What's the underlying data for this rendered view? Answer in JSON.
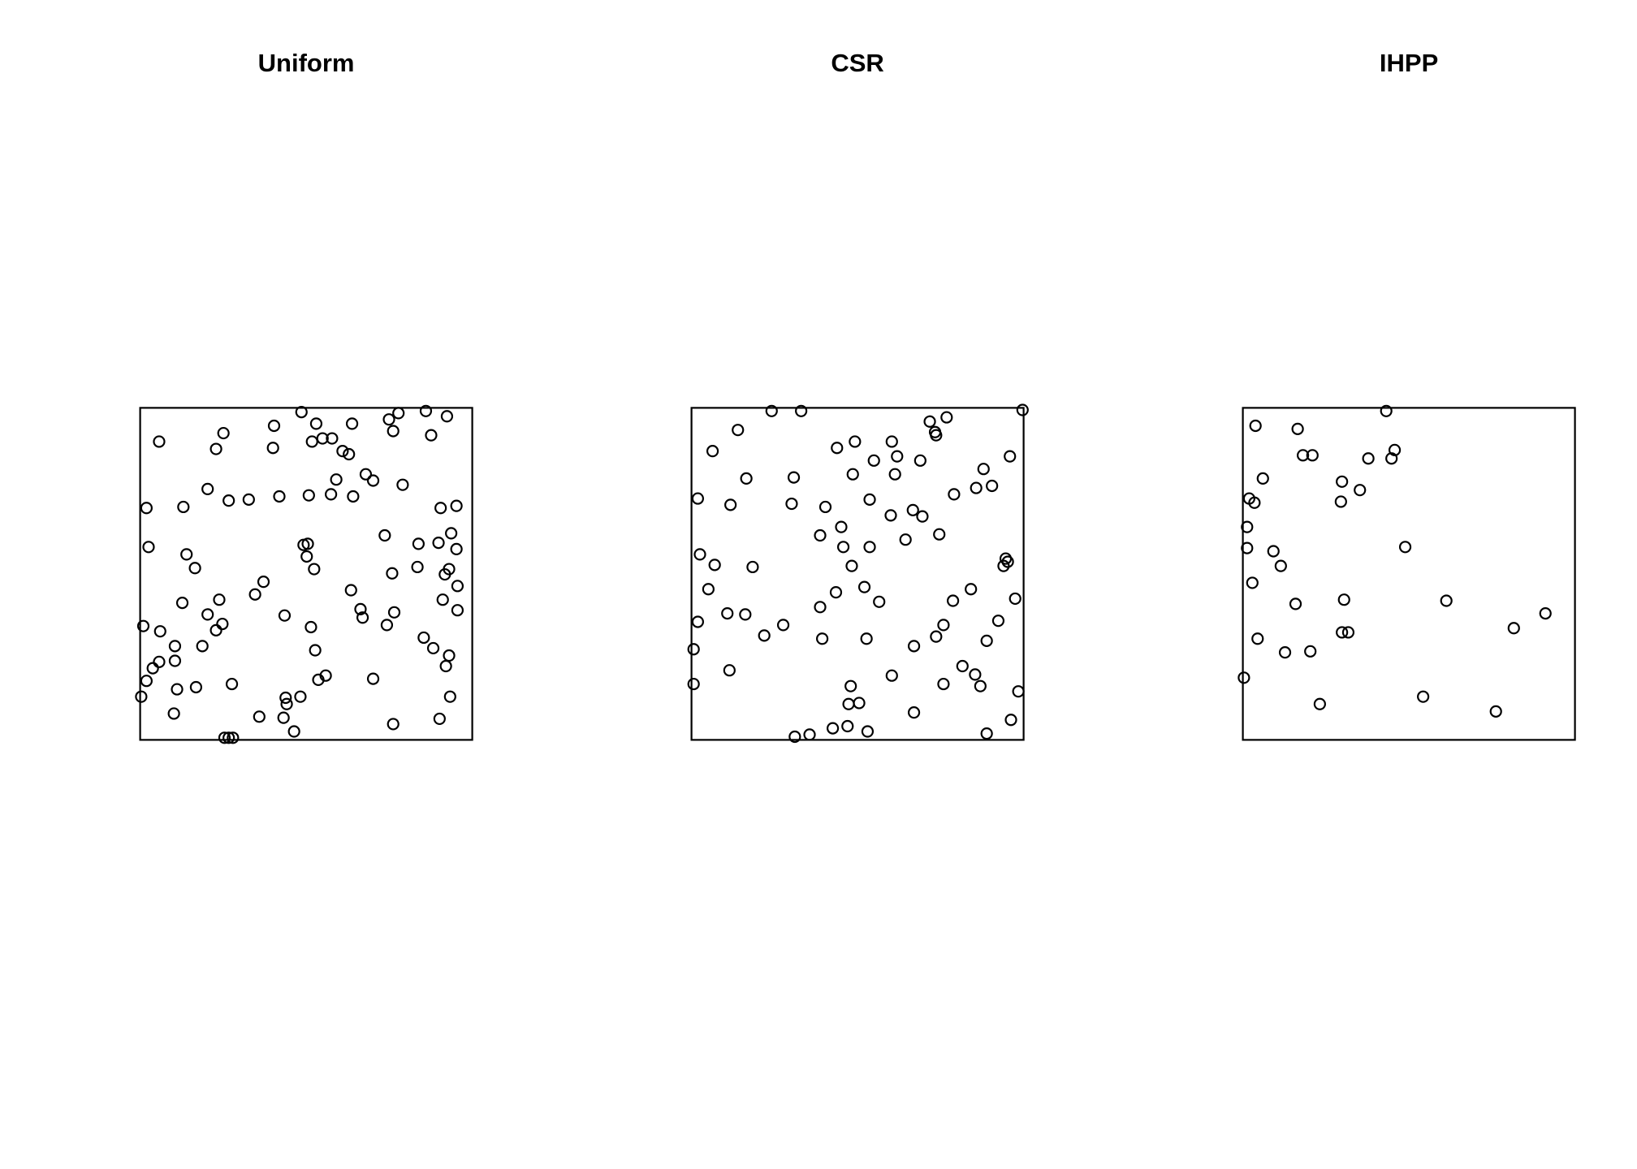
{
  "chart_data": [
    {
      "type": "scatter",
      "title": "Uniform",
      "color": "#000000",
      "xlim": [
        0,
        315
      ],
      "ylim": [
        0,
        315
      ],
      "x": [
        18,
        79,
        72,
        127,
        126,
        153,
        167,
        163,
        173,
        182,
        192,
        198,
        201,
        236,
        245,
        240,
        271,
        291,
        276,
        214,
        221,
        249,
        186,
        181,
        202,
        160,
        132,
        103,
        84,
        64,
        41,
        6,
        8,
        44,
        52,
        155,
        159,
        158,
        165,
        117,
        109,
        40,
        75,
        64,
        78,
        72,
        137,
        162,
        166,
        200,
        209,
        211,
        241,
        234,
        239,
        232,
        264,
        263,
        283,
        295,
        300,
        285,
        300,
        293,
        289,
        301,
        287,
        301,
        269,
        278,
        293,
        290,
        294,
        284,
        240,
        221,
        176,
        169,
        152,
        138,
        139,
        136,
        146,
        113,
        87,
        53,
        35,
        32,
        1,
        6,
        12,
        18,
        33,
        33,
        59,
        19,
        3,
        80,
        84,
        88
      ],
      "y": [
        283,
        291,
        276,
        298,
        277,
        311,
        300,
        283,
        286,
        286,
        274,
        271,
        300,
        304,
        310,
        293,
        312,
        307,
        289,
        252,
        246,
        242,
        247,
        233,
        231,
        232,
        231,
        228,
        227,
        238,
        221,
        220,
        183,
        176,
        163,
        185,
        186,
        174,
        162,
        150,
        138,
        130,
        133,
        119,
        110,
        104,
        118,
        107,
        85,
        142,
        124,
        116,
        121,
        109,
        158,
        194,
        186,
        164,
        187,
        196,
        181,
        220,
        222,
        162,
        157,
        146,
        133,
        123,
        97,
        87,
        80,
        70,
        41,
        20,
        15,
        58,
        61,
        57,
        41,
        40,
        34,
        21,
        8,
        22,
        53,
        50,
        48,
        25,
        41,
        56,
        68,
        74,
        75,
        89,
        89,
        103,
        108,
        2,
        2,
        2
      ]
    },
    {
      "type": "scatter",
      "title": "CSR",
      "color": "#000000",
      "xlim": [
        0,
        315
      ],
      "ylim": [
        0,
        315
      ],
      "x": [
        76,
        104,
        44,
        20,
        52,
        6,
        37,
        97,
        95,
        127,
        138,
        155,
        173,
        153,
        190,
        195,
        193,
        217,
        226,
        242,
        231,
        232,
        302,
        277,
        285,
        270,
        249,
        314,
        169,
        189,
        210,
        219,
        142,
        122,
        144,
        169,
        203,
        235,
        152,
        164,
        137,
        122,
        178,
        58,
        22,
        8,
        16,
        6,
        34,
        51,
        87,
        69,
        124,
        166,
        211,
        232,
        239,
        248,
        265,
        291,
        307,
        280,
        298,
        300,
        296,
        2,
        2,
        36,
        151,
        149,
        159,
        190,
        257,
        269,
        274,
        239,
        310,
        303,
        280,
        211,
        167,
        148,
        134,
        112,
        98
      ],
      "y": [
        312,
        312,
        294,
        274,
        248,
        229,
        223,
        249,
        224,
        221,
        277,
        283,
        265,
        252,
        283,
        269,
        252,
        265,
        302,
        306,
        292,
        289,
        269,
        257,
        241,
        239,
        233,
        313,
        228,
        213,
        218,
        212,
        202,
        194,
        183,
        183,
        190,
        195,
        165,
        145,
        140,
        126,
        131,
        164,
        166,
        176,
        143,
        112,
        120,
        119,
        109,
        99,
        96,
        96,
        89,
        98,
        109,
        132,
        143,
        113,
        134,
        94,
        172,
        169,
        165,
        86,
        53,
        66,
        51,
        34,
        35,
        61,
        70,
        62,
        51,
        53,
        46,
        19,
        6,
        26,
        8,
        13,
        11,
        5,
        3
      ]
    },
    {
      "type": "scatter",
      "title": "IHPP",
      "color": "#000000",
      "xlim": [
        0,
        315
      ],
      "ylim": [
        0,
        315
      ],
      "x": [
        136,
        12,
        52,
        57,
        66,
        119,
        144,
        141,
        19,
        94,
        111,
        93,
        6,
        11,
        4,
        4,
        29,
        36,
        9,
        154,
        50,
        96,
        193,
        287,
        257,
        94,
        100,
        14,
        40,
        64,
        1,
        73,
        171,
        240
      ],
      "y": [
        312,
        298,
        295,
        270,
        270,
        267,
        275,
        267,
        248,
        245,
        237,
        226,
        229,
        225,
        202,
        182,
        179,
        165,
        149,
        183,
        129,
        133,
        132,
        120,
        106,
        102,
        102,
        96,
        83,
        84,
        59,
        34,
        41,
        27
      ]
    }
  ]
}
